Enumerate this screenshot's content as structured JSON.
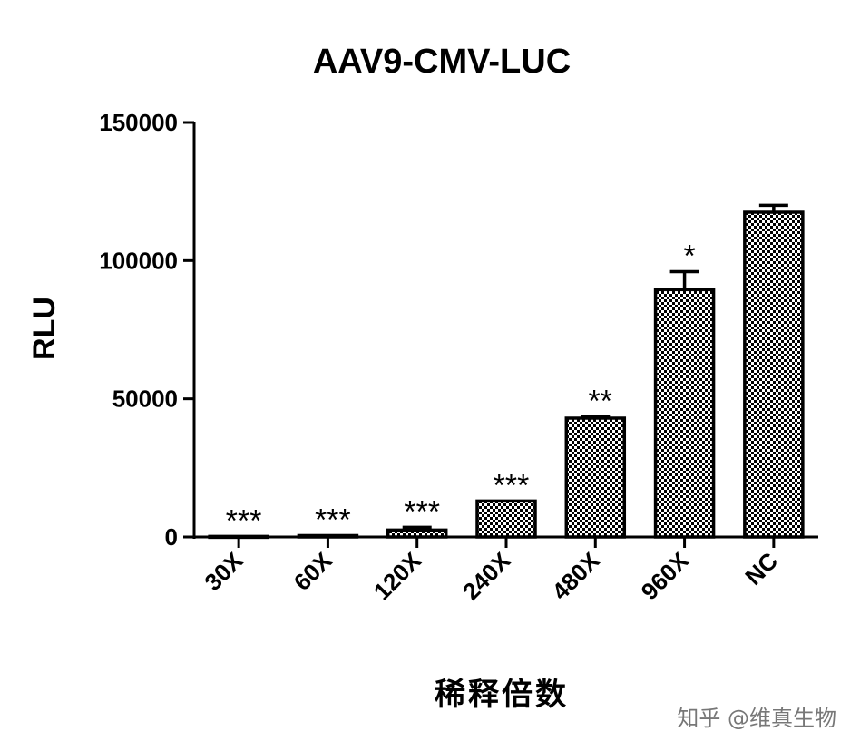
{
  "chart_data": {
    "type": "bar",
    "title": "AAV9-CMV-LUC",
    "xlabel": "稀释倍数",
    "ylabel": "RLU",
    "categories": [
      "30X",
      "60X",
      "120X",
      "240X",
      "480X",
      "960X",
      "NC"
    ],
    "values": [
      200,
      500,
      2500,
      13000,
      43000,
      89500,
      117500
    ],
    "errors": [
      0,
      0,
      1000,
      0,
      500,
      6500,
      2500
    ],
    "significance": [
      "***",
      "***",
      "***",
      "***",
      "**",
      "*",
      ""
    ],
    "yticks": [
      0,
      50000,
      100000,
      150000
    ],
    "ylim": [
      0,
      150000
    ],
    "grid": false,
    "legend": "none",
    "bar_pattern": "checkerboard",
    "colors": {
      "bar_dark": "#000000",
      "bar_light": "#ffffff",
      "axis": "#000000"
    }
  },
  "watermark": "知乎 @维真生物"
}
